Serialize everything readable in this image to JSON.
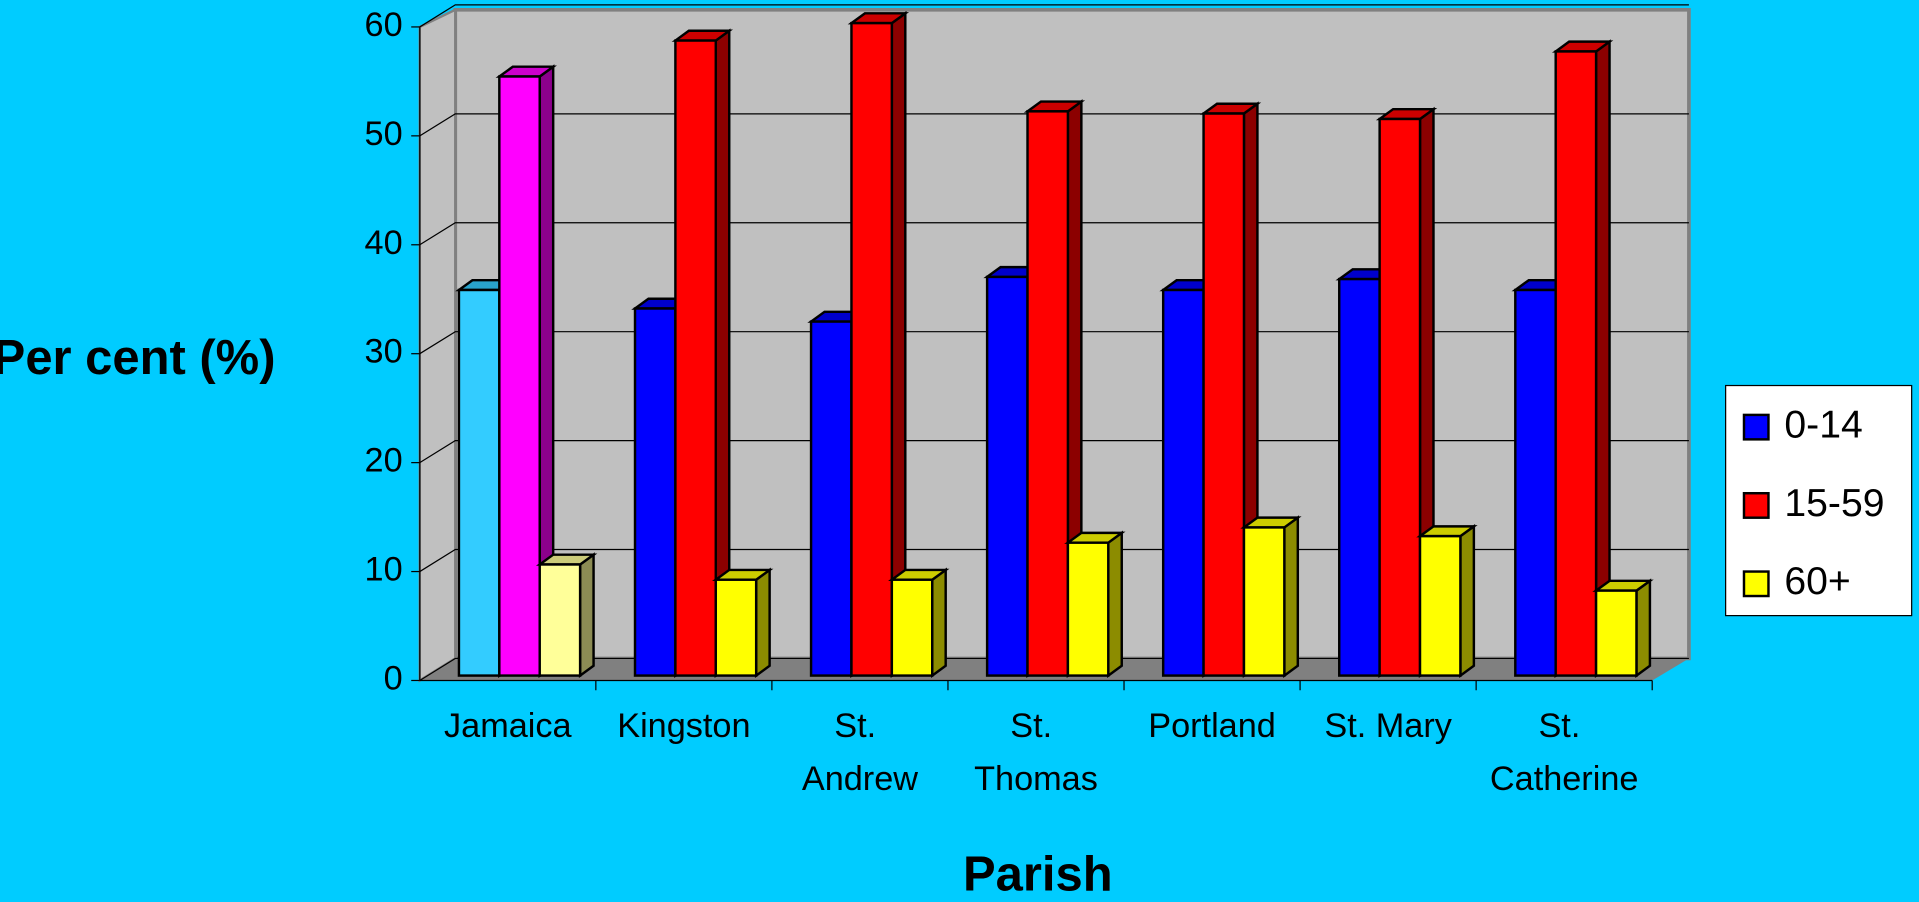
{
  "chart_data": {
    "type": "bar3d",
    "x_label": "Parish",
    "y_label": "Per cent (%)",
    "categories": [
      "Jamaica",
      "Kingston",
      "St. Andrew",
      "St. Thomas",
      "Portland",
      "St. Mary",
      "St. Catherine"
    ],
    "series": [
      {
        "name": "0-14",
        "color": "#0000ff",
        "point_colors": [
          "#33ccff",
          "#0000ff",
          "#0000ff",
          "#0000ff",
          "#0000ff",
          "#0000ff",
          "#0000ff"
        ],
        "values": [
          35.4,
          33.7,
          32.5,
          36.6,
          35.4,
          36.4,
          35.4
        ]
      },
      {
        "name": "15-59",
        "color": "#ff0000",
        "point_colors": [
          "#ff00ff",
          "#ff0000",
          "#ff0000",
          "#ff0000",
          "#ff0000",
          "#ff0000",
          "#ff0000"
        ],
        "values": [
          55,
          58.3,
          59.9,
          51.8,
          51.6,
          51.1,
          57.3
        ]
      },
      {
        "name": "60+",
        "color": "#ffff00",
        "point_colors": [
          "#ffff99",
          "#ffff00",
          "#ffff00",
          "#ffff00",
          "#ffff00",
          "#ffff00",
          "#ffff00"
        ],
        "values": [
          10.2,
          8.8,
          8.8,
          12.2,
          13.6,
          12.8,
          7.8
        ]
      }
    ],
    "ylim": [
      0,
      60
    ],
    "yticks": [
      0,
      10,
      20,
      30,
      40,
      50,
      60
    ],
    "grid": true,
    "legend": "right"
  }
}
